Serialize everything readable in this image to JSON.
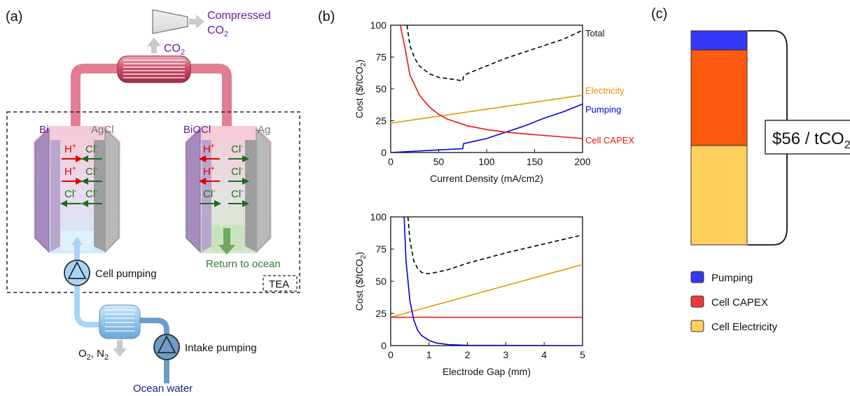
{
  "panel_labels": {
    "a": "(a)",
    "b": "(b)",
    "c": "(c)"
  },
  "diagram": {
    "compressed_co2_line1": "Compressed",
    "compressed_co2_line2": "CO",
    "co2_label": "CO",
    "left_cell": {
      "anode": "Bi",
      "cathode": "AgCl",
      "ions": [
        {
          "text": "H",
          "sup": "+",
          "dir": "right",
          "color": "red"
        },
        {
          "text": "Cl",
          "sup": "-",
          "dir": "left",
          "color": "green"
        },
        {
          "text": "H",
          "sup": "+",
          "dir": "right",
          "color": "red"
        },
        {
          "text": "Cl",
          "sup": "-",
          "dir": "left",
          "color": "green"
        },
        {
          "text": "Cl",
          "sup": "-",
          "dir": "left",
          "color": "green"
        },
        {
          "text": "Cl",
          "sup": "-",
          "dir": "left",
          "color": "green"
        }
      ]
    },
    "right_cell": {
      "anode": "BiOCl",
      "cathode": "Ag",
      "ions": [
        {
          "text": "H",
          "sup": "+",
          "dir": "left",
          "color": "red"
        },
        {
          "text": "Cl",
          "sup": "-",
          "dir": "right",
          "color": "green"
        },
        {
          "text": "H",
          "sup": "+",
          "dir": "left",
          "color": "red"
        },
        {
          "text": "Cl",
          "sup": "-",
          "dir": "right",
          "color": "green"
        },
        {
          "text": "Cl",
          "sup": "-",
          "dir": "right",
          "color": "green"
        },
        {
          "text": "Cl",
          "sup": "-",
          "dir": "right",
          "color": "green"
        }
      ]
    },
    "return_to_ocean": "Return to ocean",
    "cell_pumping": "Cell pumping",
    "tea_label": "TEA",
    "o2_n2": "O",
    "intake_pumping": "Intake pumping",
    "ocean_water": "Ocean water",
    "colors": {
      "purple_text": "#6a1b9a",
      "green_text": "#2e7d32",
      "red_ion": "#e00000",
      "green_ion": "#1b6e1b"
    }
  },
  "chart_data": [
    {
      "type": "line",
      "xlabel": "Current Density (mA/cm2)",
      "ylabel": "Cost ($/tCO2)",
      "xlim": [
        0,
        200
      ],
      "ylim": [
        0,
        100
      ],
      "xticks": [
        0,
        50,
        100,
        150,
        200
      ],
      "yticks": [
        0,
        25,
        50,
        75,
        100
      ],
      "series": [
        {
          "name": "Total",
          "color": "#000000",
          "dashed": true,
          "x": [
            17,
            20,
            25,
            30,
            40,
            50,
            60,
            70,
            75,
            76,
            80,
            100,
            120,
            140,
            160,
            180,
            200
          ],
          "y": [
            100,
            84,
            74,
            68,
            62,
            59,
            58,
            57,
            56,
            60,
            62,
            68,
            74,
            79,
            84,
            89,
            96
          ]
        },
        {
          "name": "Electricity",
          "color": "#e09a00",
          "dashed": false,
          "x": [
            0,
            200
          ],
          "y": [
            23,
            45
          ]
        },
        {
          "name": "Pumping",
          "color": "#0000dd",
          "dashed": false,
          "x": [
            0,
            20,
            40,
            60,
            75,
            76,
            100,
            120,
            140,
            160,
            180,
            200
          ],
          "y": [
            0,
            0.8,
            1.6,
            2.4,
            3,
            7,
            11,
            16,
            21,
            27,
            32,
            38
          ]
        },
        {
          "name": "Cell CAPEX",
          "color": "#ee1111",
          "dashed": false,
          "x": [
            10,
            15,
            20,
            30,
            40,
            50,
            60,
            80,
            100,
            120,
            150,
            200
          ],
          "y": [
            100,
            82,
            61,
            45,
            36,
            30,
            26,
            21,
            18,
            16,
            14,
            11
          ]
        }
      ]
    },
    {
      "type": "line",
      "xlabel": "Electrode Gap (mm)",
      "ylabel": "Cost ($/tCO2)",
      "xlim": [
        0,
        5
      ],
      "ylim": [
        0,
        100
      ],
      "xticks": [
        0,
        1,
        2,
        3,
        4,
        5
      ],
      "yticks": [
        0,
        25,
        50,
        75,
        100
      ],
      "series": [
        {
          "name": "",
          "color": "#000000",
          "dashed": true,
          "x": [
            0.45,
            0.5,
            0.6,
            0.7,
            0.8,
            0.9,
            1.0,
            1.2,
            1.5,
            2,
            3,
            4,
            5
          ],
          "y": [
            100,
            82,
            66,
            60,
            57,
            56,
            56,
            57,
            59,
            64,
            72,
            79,
            86
          ]
        },
        {
          "name": "",
          "color": "#e09a00",
          "dashed": false,
          "x": [
            0,
            5
          ],
          "y": [
            22,
            63
          ]
        },
        {
          "name": "",
          "color": "#ee1111",
          "dashed": false,
          "x": [
            0,
            5
          ],
          "y": [
            22,
            22
          ]
        },
        {
          "name": "",
          "color": "#0000dd",
          "dashed": false,
          "x": [
            0.35,
            0.4,
            0.5,
            0.6,
            0.7,
            0.8,
            1.0,
            1.2,
            1.5,
            2,
            5
          ],
          "y": [
            100,
            66,
            35,
            20,
            12,
            8,
            4,
            2,
            0.8,
            0.2,
            0
          ]
        }
      ]
    },
    {
      "type": "bar",
      "stacked": true,
      "categories": [
        ""
      ],
      "series": [
        {
          "name": "Cell Electricity",
          "color": "#ffd15c",
          "values": [
            26
          ]
        },
        {
          "name": "Cell CAPEX",
          "color": "#fd5a10",
          "values": [
            25
          ]
        },
        {
          "name": "Pumping",
          "color": "#3437f6",
          "values": [
            5
          ]
        }
      ],
      "total_label": "$56 / tCO",
      "ylim": [
        0,
        56
      ]
    }
  ],
  "legend_c": [
    {
      "label": "Pumping",
      "color": "#3437f6"
    },
    {
      "label": "Cell CAPEX",
      "color": "#ef3a3a"
    },
    {
      "label": "Cell Electricity",
      "color": "#ffd15c"
    }
  ]
}
